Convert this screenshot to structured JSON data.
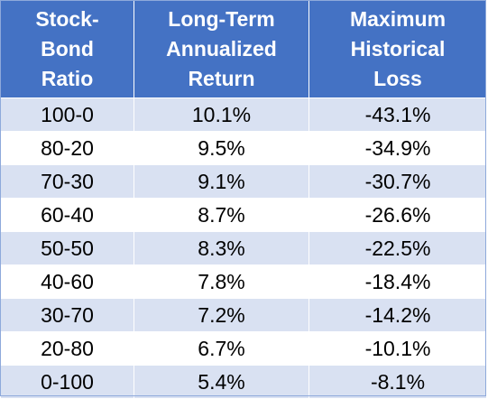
{
  "table": {
    "headers": [
      [
        "Stock-",
        "Bond",
        "Ratio"
      ],
      [
        "Long-Term",
        "Annualized",
        "Return"
      ],
      [
        "Maximum",
        "Historical",
        "Loss"
      ]
    ],
    "rows": [
      [
        "100-0",
        "10.1%",
        "-43.1%"
      ],
      [
        "80-20",
        "9.5%",
        "-34.9%"
      ],
      [
        "70-30",
        "9.1%",
        "-30.7%"
      ],
      [
        "60-40",
        "8.7%",
        "-26.6%"
      ],
      [
        "50-50",
        "8.3%",
        "-22.5%"
      ],
      [
        "40-60",
        "7.8%",
        "-18.4%"
      ],
      [
        "30-70",
        "7.2%",
        "-14.2%"
      ],
      [
        "20-80",
        "6.7%",
        "-10.1%"
      ],
      [
        "0-100",
        "5.4%",
        "-8.1%"
      ]
    ]
  },
  "colors": {
    "header_bg": "#4472c4",
    "header_text": "#ffffff",
    "band_row_bg": "#d9e1f2",
    "plain_row_bg": "#ffffff"
  }
}
